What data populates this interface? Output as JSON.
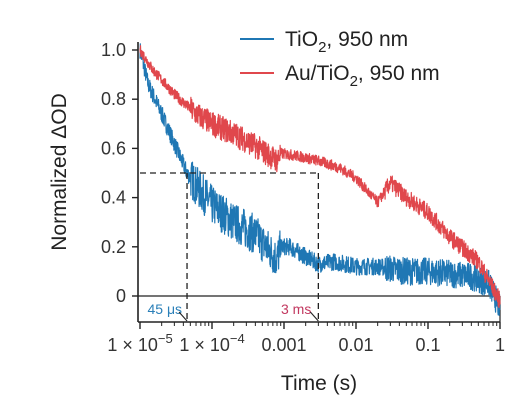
{
  "chart_data": {
    "type": "line",
    "title": "",
    "xlabel": "Time (s)",
    "ylabel": "Normalized ΔOD",
    "xscale": "log",
    "xlim": [
      1e-05,
      1
    ],
    "ylim": [
      -0.1,
      1.05
    ],
    "grid": false,
    "legend_position": "top-right",
    "x_ticks": [
      {
        "value": 1e-05,
        "base": "1 × 10",
        "exp": "−5"
      },
      {
        "value": 0.0001,
        "base": "1 × 10",
        "exp": "−4"
      },
      {
        "value": 0.001,
        "label": "0.001"
      },
      {
        "value": 0.01,
        "label": "0.01"
      },
      {
        "value": 0.1,
        "label": "0.1"
      },
      {
        "value": 1,
        "label": "1"
      }
    ],
    "y_ticks": [
      {
        "value": 0,
        "label": "0"
      },
      {
        "value": 0.2,
        "label": "0.2"
      },
      {
        "value": 0.4,
        "label": "0.4"
      },
      {
        "value": 0.6,
        "label": "0.6"
      },
      {
        "value": 0.8,
        "label": "0.8"
      },
      {
        "value": 1.0,
        "label": "1.0"
      }
    ],
    "series": [
      {
        "name": "TiO₂, 950 nm",
        "legend_main": "TiO",
        "legend_sub": "2",
        "legend_rest": ", 950 nm",
        "color": "#1f77b4",
        "x": [
          1e-05,
          1.3e-05,
          2e-05,
          3e-05,
          4.5e-05,
          6e-05,
          0.0001,
          0.0002,
          0.0004,
          0.0008,
          0.0009,
          0.0012,
          0.002,
          0.003,
          0.005,
          0.01,
          0.02,
          0.05,
          0.1,
          0.2,
          0.4,
          0.7,
          1
        ],
        "y": [
          1.0,
          0.86,
          0.74,
          0.62,
          0.5,
          0.45,
          0.37,
          0.3,
          0.25,
          0.15,
          0.2,
          0.2,
          0.16,
          0.13,
          0.14,
          0.12,
          0.12,
          0.1,
          0.1,
          0.09,
          0.08,
          0.05,
          -0.05
        ],
        "noise": 0.035
      },
      {
        "name": "Au/TiO₂, 950 nm",
        "legend_main": "Au/TiO",
        "legend_sub": "2",
        "legend_rest": ", 950 nm",
        "color": "#e0474c",
        "x": [
          1e-05,
          1.5e-05,
          3e-05,
          6e-05,
          0.0001,
          0.0002,
          0.0004,
          0.0008,
          0.0009,
          0.0015,
          0.003,
          0.006,
          0.01,
          0.015,
          0.02,
          0.03,
          0.05,
          0.1,
          0.2,
          0.5,
          1
        ],
        "y": [
          1.0,
          0.92,
          0.82,
          0.74,
          0.7,
          0.66,
          0.61,
          0.55,
          0.58,
          0.57,
          0.55,
          0.52,
          0.48,
          0.42,
          0.38,
          0.46,
          0.4,
          0.34,
          0.24,
          0.14,
          -0.02
        ],
        "noise": 0.022
      }
    ],
    "reference_lines": {
      "half_level": 0.5,
      "t_blue": 4.5e-05,
      "t_red": 0.003
    },
    "annotations": [
      {
        "text": "45 μs",
        "x": 4.5e-05,
        "color": "#2a7fb8"
      },
      {
        "text": "3 ms",
        "x": 0.003,
        "color": "#c2375f"
      }
    ]
  }
}
